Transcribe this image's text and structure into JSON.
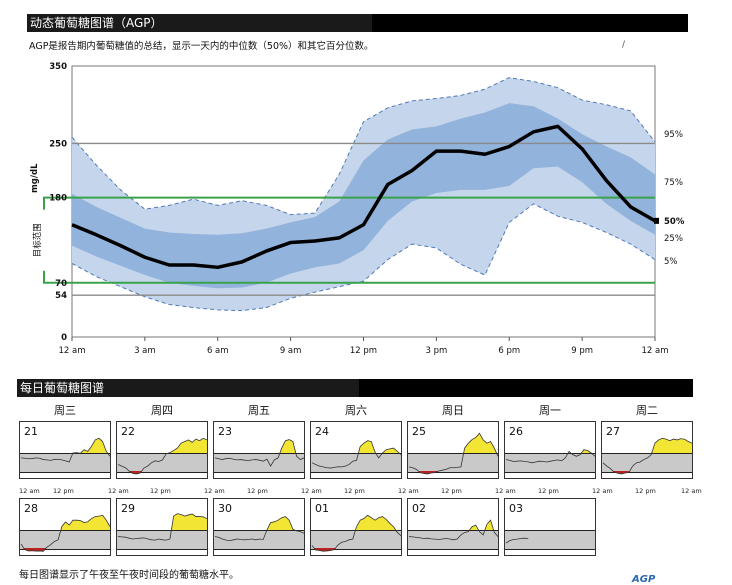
{
  "agp_header": {
    "title": "动态葡萄糖图谱（AGP）"
  },
  "agp_description": "AGP是报告期内葡萄糖值的总结，显示一天内的中位数（50%）和其它百分位数。",
  "stray_mark": "/",
  "chart_data": {
    "type": "area",
    "title": "",
    "ylabel": "mg/dL",
    "side_label": "目标范围",
    "ylim": [
      0,
      350
    ],
    "y_ticks": [
      "350",
      "250",
      "180",
      "70",
      "54",
      "0"
    ],
    "y_tick_values": [
      350,
      250,
      180,
      70,
      54,
      0
    ],
    "target_range": [
      70,
      180
    ],
    "reference_lines": [
      250,
      54
    ],
    "x_hours": [
      0,
      1,
      2,
      3,
      4,
      5,
      6,
      7,
      8,
      9,
      10,
      11,
      12,
      13,
      14,
      15,
      16,
      17,
      18,
      19,
      20,
      21,
      22,
      23,
      24
    ],
    "x_tick_labels": [
      "12 am",
      "3 am",
      "6 am",
      "9 am",
      "12 pm",
      "3 pm",
      "6 pm",
      "9 pm",
      "12 am"
    ],
    "x_tick_hours": [
      0,
      3,
      6,
      9,
      12,
      15,
      18,
      21,
      24
    ],
    "percentile_labels": [
      "95%",
      "75%",
      "50%",
      "25%",
      "5%"
    ],
    "percentile_label_values": [
      262,
      200,
      150,
      128,
      98
    ],
    "series": [
      {
        "name": "95%",
        "values": [
          258,
          222,
          190,
          165,
          170,
          178,
          170,
          176,
          170,
          158,
          160,
          210,
          278,
          296,
          305,
          308,
          312,
          320,
          335,
          330,
          322,
          306,
          300,
          292,
          252
        ]
      },
      {
        "name": "75%",
        "values": [
          185,
          168,
          154,
          140,
          135,
          133,
          132,
          134,
          140,
          148,
          155,
          175,
          228,
          255,
          268,
          272,
          282,
          290,
          302,
          298,
          282,
          262,
          246,
          232,
          210
        ]
      },
      {
        "name": "50%",
        "values": [
          145,
          132,
          118,
          103,
          93,
          93,
          90,
          97,
          111,
          122,
          124,
          128,
          145,
          197,
          215,
          240,
          240,
          236,
          246,
          265,
          272,
          243,
          202,
          168,
          150
        ]
      },
      {
        "name": "25%",
        "values": [
          118,
          104,
          92,
          80,
          70,
          66,
          63,
          64,
          70,
          82,
          90,
          95,
          112,
          150,
          175,
          186,
          190,
          190,
          195,
          218,
          220,
          200,
          172,
          150,
          132
        ]
      },
      {
        "name": "5%",
        "values": [
          95,
          78,
          65,
          52,
          42,
          38,
          35,
          34,
          38,
          50,
          58,
          65,
          72,
          100,
          120,
          115,
          94,
          80,
          148,
          172,
          156,
          148,
          135,
          120,
          100
        ]
      }
    ]
  },
  "daily_header": {
    "title": "每日葡萄糖图谱"
  },
  "day_names": [
    "周三",
    "周四",
    "周五",
    "周六",
    "周日",
    "周一",
    "周二"
  ],
  "mini_time_labels": [
    "12 am",
    "12 pm",
    "12 am",
    "12 pm",
    "12 am",
    "12 pm",
    "12 am",
    "12 pm",
    "12 am",
    "12 pm",
    "12 am",
    "12 pm",
    "12 am",
    "12 pm",
    "12 am"
  ],
  "daily_profiles": [
    {
      "date": "21",
      "values": [
        150,
        148,
        145,
        146,
        150,
        148,
        140,
        138,
        135,
        140,
        142,
        138,
        132,
        125,
        180,
        182,
        178,
        200,
        190,
        220,
        260,
        270,
        250,
        190,
        160
      ]
    },
    {
      "date": "22",
      "values": [
        110,
        100,
        90,
        70,
        55,
        52,
        58,
        88,
        100,
        120,
        132,
        128,
        138,
        175,
        182,
        195,
        210,
        240,
        250,
        260,
        245,
        265,
        255,
        270,
        260
      ]
    },
    {
      "date": "23",
      "values": [
        150,
        145,
        140,
        146,
        148,
        142,
        138,
        140,
        136,
        134,
        138,
        140,
        136,
        130,
        142,
        100,
        138,
        150,
        210,
        255,
        262,
        250,
        160,
        140,
        150
      ]
    },
    {
      "date": "24",
      "values": [
        120,
        110,
        100,
        95,
        90,
        88,
        92,
        96,
        95,
        100,
        110,
        130,
        135,
        220,
        240,
        255,
        250,
        185,
        150,
        180,
        200,
        205,
        210,
        190,
        170
      ]
    },
    {
      "date": "25",
      "values": [
        95,
        90,
        80,
        60,
        55,
        52,
        58,
        60,
        70,
        75,
        80,
        90,
        90,
        92,
        95,
        210,
        240,
        262,
        275,
        300,
        260,
        240,
        250,
        210,
        160
      ]
    },
    {
      "date": "26",
      "values": [
        140,
        135,
        128,
        130,
        132,
        128,
        126,
        120,
        125,
        130,
        128,
        125,
        130,
        134,
        138,
        132,
        150,
        190,
        170,
        160,
        170,
        200,
        195,
        180,
        160
      ]
    },
    {
      "date": "27",
      "values": [
        120,
        100,
        85,
        62,
        56,
        52,
        58,
        62,
        100,
        120,
        125,
        140,
        150,
        170,
        240,
        260,
        270,
        265,
        255,
        265,
        260,
        268,
        264,
        250,
        240
      ]
    },
    {
      "date": "28",
      "values": [
        95,
        60,
        52,
        53,
        51,
        52,
        50,
        75,
        90,
        110,
        120,
        200,
        230,
        210,
        240,
        240,
        238,
        225,
        230,
        250,
        262,
        265,
        270,
        240,
        200
      ]
    },
    {
      "date": "29",
      "values": [
        140,
        138,
        136,
        130,
        125,
        128,
        130,
        132,
        126,
        120,
        118,
        125,
        120,
        118,
        125,
        265,
        280,
        275,
        265,
        272,
        278,
        262,
        262,
        260,
        250
      ]
    },
    {
      "date": "30",
      "values": [
        140,
        135,
        125,
        118,
        115,
        120,
        125,
        122,
        120,
        122,
        125,
        120,
        125,
        122,
        180,
        225,
        230,
        240,
        255,
        262,
        240,
        185,
        175,
        170,
        160
      ]
    },
    {
      "date": "01",
      "values": [
        85,
        58,
        55,
        50,
        52,
        55,
        60,
        88,
        105,
        110,
        120,
        125,
        200,
        240,
        250,
        270,
        255,
        240,
        255,
        262,
        245,
        220,
        200,
        165,
        145
      ]
    },
    {
      "date": "02",
      "values": [
        140,
        138,
        135,
        132,
        128,
        130,
        126,
        124,
        122,
        125,
        128,
        125,
        120,
        125,
        150,
        165,
        170,
        200,
        210,
        170,
        150,
        215,
        240,
        165,
        140
      ]
    },
    {
      "date": "03",
      "values": [
        100,
        115,
        122,
        124,
        128,
        130,
        128
      ]
    }
  ],
  "footer": "每日图谱显示了午夜至午夜时间段的葡萄糖水平。",
  "brand_fragment": "AGP"
}
